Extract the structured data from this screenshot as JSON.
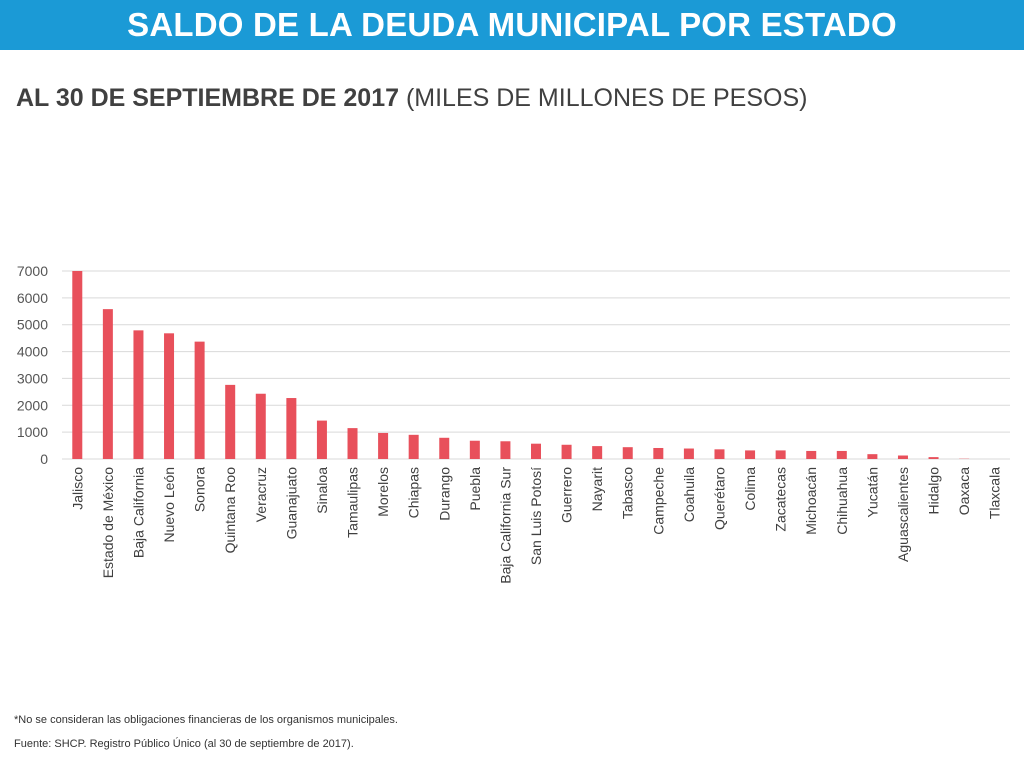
{
  "header": {
    "title": "SALDO DE LA DEUDA MUNICIPAL POR ESTADO",
    "subtitle_bold": "AL 30 DE SEPTIEMBRE DE 2017",
    "subtitle_rest": " (MILES DE MILLONES DE PESOS)",
    "bar_color": "#1b9ad6"
  },
  "chart_data": {
    "type": "bar",
    "title": "",
    "xlabel": "",
    "ylabel": "",
    "ylim": [
      0,
      7000
    ],
    "yticks": [
      0,
      1000,
      2000,
      3000,
      4000,
      5000,
      6000,
      7000
    ],
    "grid": true,
    "bar_color": "#e8505b",
    "categories": [
      "Jalisco",
      "Estado de México",
      "Baja California",
      "Nuevo León",
      "Sonora",
      "Quintana Roo",
      "Veracruz",
      "Guanajuato",
      "Sinaloa",
      "Tamaulipas",
      "Morelos",
      "Chiapas",
      "Durango",
      "Puebla",
      "Baja California Sur",
      "San Luis Potosí",
      "Guerrero",
      "Nayarit",
      "Tabasco",
      "Campeche",
      "Coahuila",
      "Querétaro",
      "Colima",
      "Zacatecas",
      "Michoacán",
      "Chihuahua",
      "Yucatán",
      "Aguascalientes",
      "Hidalgo",
      "Oaxaca",
      "Tlaxcala"
    ],
    "values": [
      7000,
      5580,
      4790,
      4680,
      4370,
      2760,
      2430,
      2270,
      1430,
      1150,
      970,
      900,
      790,
      680,
      660,
      570,
      530,
      480,
      440,
      410,
      390,
      360,
      320,
      320,
      300,
      300,
      180,
      130,
      70,
      10,
      0
    ]
  },
  "footnotes": {
    "note": "*No se consideran las obligaciones financieras de los organismos municipales.",
    "source": "Fuente: SHCP. Registro Público Único (al 30 de septiembre de 2017)."
  }
}
